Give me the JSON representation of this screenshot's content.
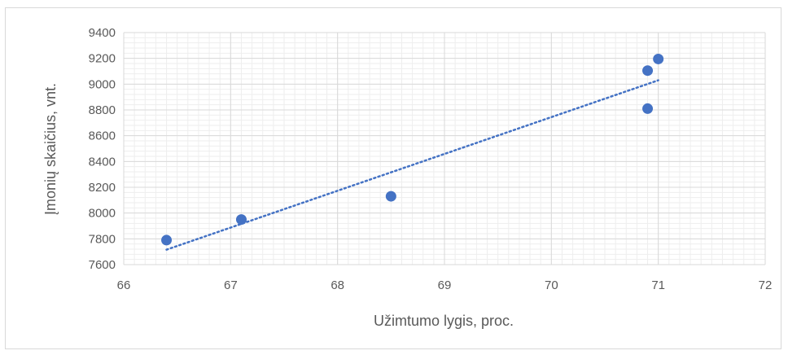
{
  "chart_data": {
    "type": "scatter",
    "title": "",
    "xlabel": "Užimtumo lygis, proc.",
    "ylabel": "Įmonių skaičius, vnt.",
    "xlim": [
      66,
      72
    ],
    "ylim": [
      7600,
      9400
    ],
    "xticks": [
      66,
      67,
      68,
      69,
      70,
      71,
      72
    ],
    "yticks": [
      7600,
      7800,
      8000,
      8200,
      8400,
      8600,
      8800,
      9000,
      9200,
      9400
    ],
    "x_minor_per_major": 10,
    "y_minor_step": 40,
    "grid": true,
    "legend": "none",
    "series": [
      {
        "points": [
          {
            "x": 66.4,
            "y": 7790
          },
          {
            "x": 67.1,
            "y": 7950
          },
          {
            "x": 68.5,
            "y": 8130
          },
          {
            "x": 70.9,
            "y": 9105
          },
          {
            "x": 71.0,
            "y": 9195
          },
          {
            "x": 70.9,
            "y": 8810
          }
        ],
        "color": "#4472c4"
      }
    ],
    "trendline": {
      "type": "linear",
      "style": "dotted",
      "color": "#4472c4",
      "from_x": 66.4,
      "to_x": 71.0
    }
  },
  "colors": {
    "major_grid": "#d9d9d9",
    "minor_grid": "#eeeeee",
    "tick_text": "#595959"
  }
}
